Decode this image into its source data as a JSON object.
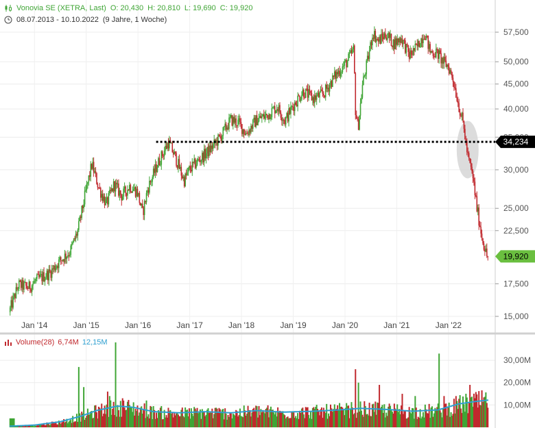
{
  "header": {
    "symbol_line": "Vonovia SE (XETRA, Last)",
    "open": "O: 20,430",
    "high": "H: 20,810",
    "low": "L: 19,690",
    "close": "C: 19,920",
    "date_range": "08.07.2013 - 10.10.2022",
    "duration": "(9 Jahre, 1 Woche)"
  },
  "volume_header": {
    "label": "Volume(28)",
    "value": "6,74M",
    "avg": "12,15M"
  },
  "colors": {
    "up": "#3fa535",
    "down": "#c0282d",
    "avg_line": "#2e9fd0",
    "support_line": "#000000",
    "last_price_badge": "#6abf3f",
    "level_badge": "#000000",
    "highlight": "#cccccc"
  },
  "chart_data": {
    "type": "candlestick",
    "price_axis": {
      "scale": "log",
      "ticks": [
        "57,500",
        "50,000",
        "45,000",
        "40,000",
        "35,000",
        "30,000",
        "25,000",
        "22,500",
        "17,500",
        "15,000"
      ],
      "tick_values": [
        57.5,
        50,
        45,
        40,
        35,
        30,
        25,
        22.5,
        17.5,
        15
      ],
      "ylim": [
        14.3,
        62
      ]
    },
    "x_axis": {
      "ticks": [
        "Jan '14",
        "Jan '15",
        "Jan '16",
        "Jan '17",
        "Jan '18",
        "Jan '19",
        "Jan '20",
        "Jan '21",
        "Jan '22"
      ],
      "tick_dates": [
        2014.0,
        2015.0,
        2016.0,
        2017.0,
        2018.0,
        2019.0,
        2020.0,
        2021.0,
        2022.0
      ],
      "range": [
        "2013-07",
        "2022-10"
      ]
    },
    "price_path": [
      [
        2013.52,
        15.3
      ],
      [
        2013.7,
        17.4
      ],
      [
        2013.9,
        17.2
      ],
      [
        2014.05,
        17.8
      ],
      [
        2014.3,
        18.4
      ],
      [
        2014.5,
        19.5
      ],
      [
        2014.7,
        20.4
      ],
      [
        2014.85,
        22.5
      ],
      [
        2015.0,
        27.0
      ],
      [
        2015.12,
        30.8
      ],
      [
        2015.25,
        27.6
      ],
      [
        2015.4,
        25.5
      ],
      [
        2015.55,
        28.0
      ],
      [
        2015.7,
        26.5
      ],
      [
        2015.85,
        27.8
      ],
      [
        2016.0,
        27.0
      ],
      [
        2016.1,
        24.4
      ],
      [
        2016.2,
        27.5
      ],
      [
        2016.4,
        31.0
      ],
      [
        2016.6,
        34.2
      ],
      [
        2016.75,
        31.5
      ],
      [
        2016.9,
        28.5
      ],
      [
        2017.0,
        30.0
      ],
      [
        2017.2,
        31.5
      ],
      [
        2017.4,
        33.0
      ],
      [
        2017.6,
        35.0
      ],
      [
        2017.8,
        38.0
      ],
      [
        2017.95,
        37.5
      ],
      [
        2018.1,
        35.6
      ],
      [
        2018.3,
        38.0
      ],
      [
        2018.5,
        38.8
      ],
      [
        2018.7,
        40.5
      ],
      [
        2018.85,
        37.8
      ],
      [
        2019.0,
        40.5
      ],
      [
        2019.2,
        43.5
      ],
      [
        2019.4,
        42.0
      ],
      [
        2019.6,
        43.0
      ],
      [
        2019.8,
        46.5
      ],
      [
        2020.05,
        50.0
      ],
      [
        2020.18,
        53.0
      ],
      [
        2020.21,
        40.0
      ],
      [
        2020.26,
        36.5
      ],
      [
        2020.35,
        45.0
      ],
      [
        2020.45,
        50.5
      ],
      [
        2020.55,
        57.5
      ],
      [
        2020.65,
        55.0
      ],
      [
        2020.8,
        57.0
      ],
      [
        2020.95,
        54.5
      ],
      [
        2021.1,
        56.0
      ],
      [
        2021.25,
        51.5
      ],
      [
        2021.4,
        53.5
      ],
      [
        2021.55,
        57.5
      ],
      [
        2021.65,
        52.5
      ],
      [
        2021.8,
        52.0
      ],
      [
        2021.9,
        50.0
      ],
      [
        2022.0,
        49.0
      ],
      [
        2022.1,
        46.0
      ],
      [
        2022.2,
        41.0
      ],
      [
        2022.3,
        37.0
      ],
      [
        2022.38,
        32.0
      ],
      [
        2022.48,
        29.0
      ],
      [
        2022.56,
        25.0
      ],
      [
        2022.65,
        22.0
      ],
      [
        2022.75,
        19.92
      ]
    ],
    "support_level": {
      "value": 34.234,
      "label": "34,234",
      "from": 2016.55
    },
    "last_price": {
      "value": 19.92,
      "label": "19,920"
    },
    "highlight_ellipse": {
      "center_date": 2022.37,
      "center_value": 33.0
    },
    "volume": {
      "title": "Volume(28)",
      "ticks": [
        "30,00M",
        "20,00M",
        "10,00M"
      ],
      "tick_values": [
        30,
        20,
        10
      ],
      "ylim": [
        0,
        38
      ],
      "spikes": [
        [
          2014.85,
          27,
          "up"
        ],
        [
          2014.95,
          18,
          "up"
        ],
        [
          2015.4,
          16,
          "down"
        ],
        [
          2015.45,
          14,
          "up"
        ],
        [
          2015.55,
          38,
          "up"
        ],
        [
          2015.7,
          13,
          "down"
        ],
        [
          2016.15,
          12,
          "up"
        ],
        [
          2020.2,
          26,
          "down"
        ],
        [
          2020.25,
          20,
          "up"
        ],
        [
          2020.65,
          19,
          "down"
        ],
        [
          2021.1,
          15,
          "down"
        ],
        [
          2021.35,
          14,
          "up"
        ],
        [
          2021.8,
          33,
          "up"
        ],
        [
          2021.9,
          14,
          "down"
        ],
        [
          2022.4,
          19,
          "down"
        ]
      ],
      "avg_path": [
        [
          2013.52,
          0.5
        ],
        [
          2014.0,
          1
        ],
        [
          2014.5,
          2.5
        ],
        [
          2014.9,
          5
        ],
        [
          2015.2,
          7.5
        ],
        [
          2015.6,
          9.5
        ],
        [
          2015.9,
          9
        ],
        [
          2016.3,
          7
        ],
        [
          2016.8,
          6.5
        ],
        [
          2017.3,
          7
        ],
        [
          2017.8,
          6.5
        ],
        [
          2018.3,
          7.5
        ],
        [
          2018.8,
          6.8
        ],
        [
          2019.4,
          7.2
        ],
        [
          2019.9,
          7.8
        ],
        [
          2020.3,
          8.5
        ],
        [
          2020.8,
          8.0
        ],
        [
          2021.3,
          7.2
        ],
        [
          2021.8,
          7.8
        ],
        [
          2022.2,
          10.5
        ],
        [
          2022.5,
          11.5
        ],
        [
          2022.75,
          12.15
        ]
      ]
    }
  }
}
